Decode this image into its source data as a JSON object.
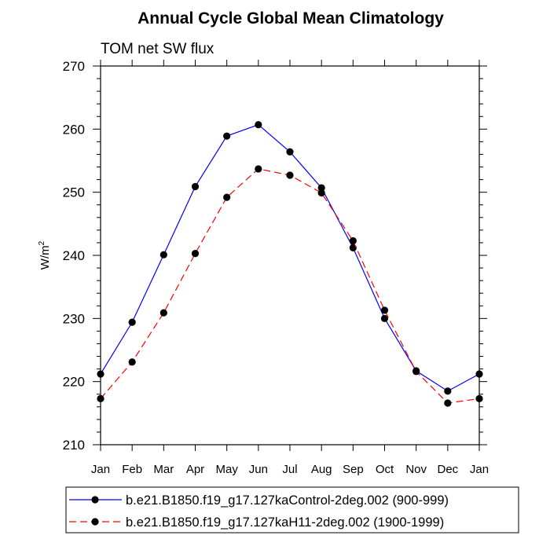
{
  "chart_data": {
    "type": "line",
    "title": "Annual Cycle Global Mean Climatology",
    "subtitle": "TOM net SW flux",
    "ylabel_base": "W/m",
    "ylabel_sup": "2",
    "xlabel": "",
    "categories": [
      "Jan",
      "Feb",
      "Mar",
      "Apr",
      "May",
      "Jun",
      "Jul",
      "Aug",
      "Sep",
      "Oct",
      "Nov",
      "Dec",
      "Jan"
    ],
    "ylim": [
      210,
      270
    ],
    "yticks": [
      "210",
      "220",
      "230",
      "240",
      "250",
      "260",
      "270"
    ],
    "series": [
      {
        "name": "b.e21.B1850.f19_g17.127kaControl-2deg.002 (900-999)",
        "color": "#0000ff",
        "dash": "solid",
        "values": [
          221.2,
          229.4,
          240.1,
          250.9,
          258.9,
          260.7,
          256.4,
          250.7,
          241.2,
          230.0,
          221.7,
          218.5,
          221.2
        ]
      },
      {
        "name": "b.e21.B1850.f19_g17.127kaH11-2deg.002 (1900-1999)",
        "color": "#ff0000",
        "dash": "dashed",
        "values": [
          217.3,
          223.1,
          230.9,
          240.3,
          249.2,
          253.7,
          252.7,
          249.9,
          242.3,
          231.3,
          221.6,
          216.6,
          217.3
        ]
      }
    ],
    "legend_position": "bottom"
  }
}
